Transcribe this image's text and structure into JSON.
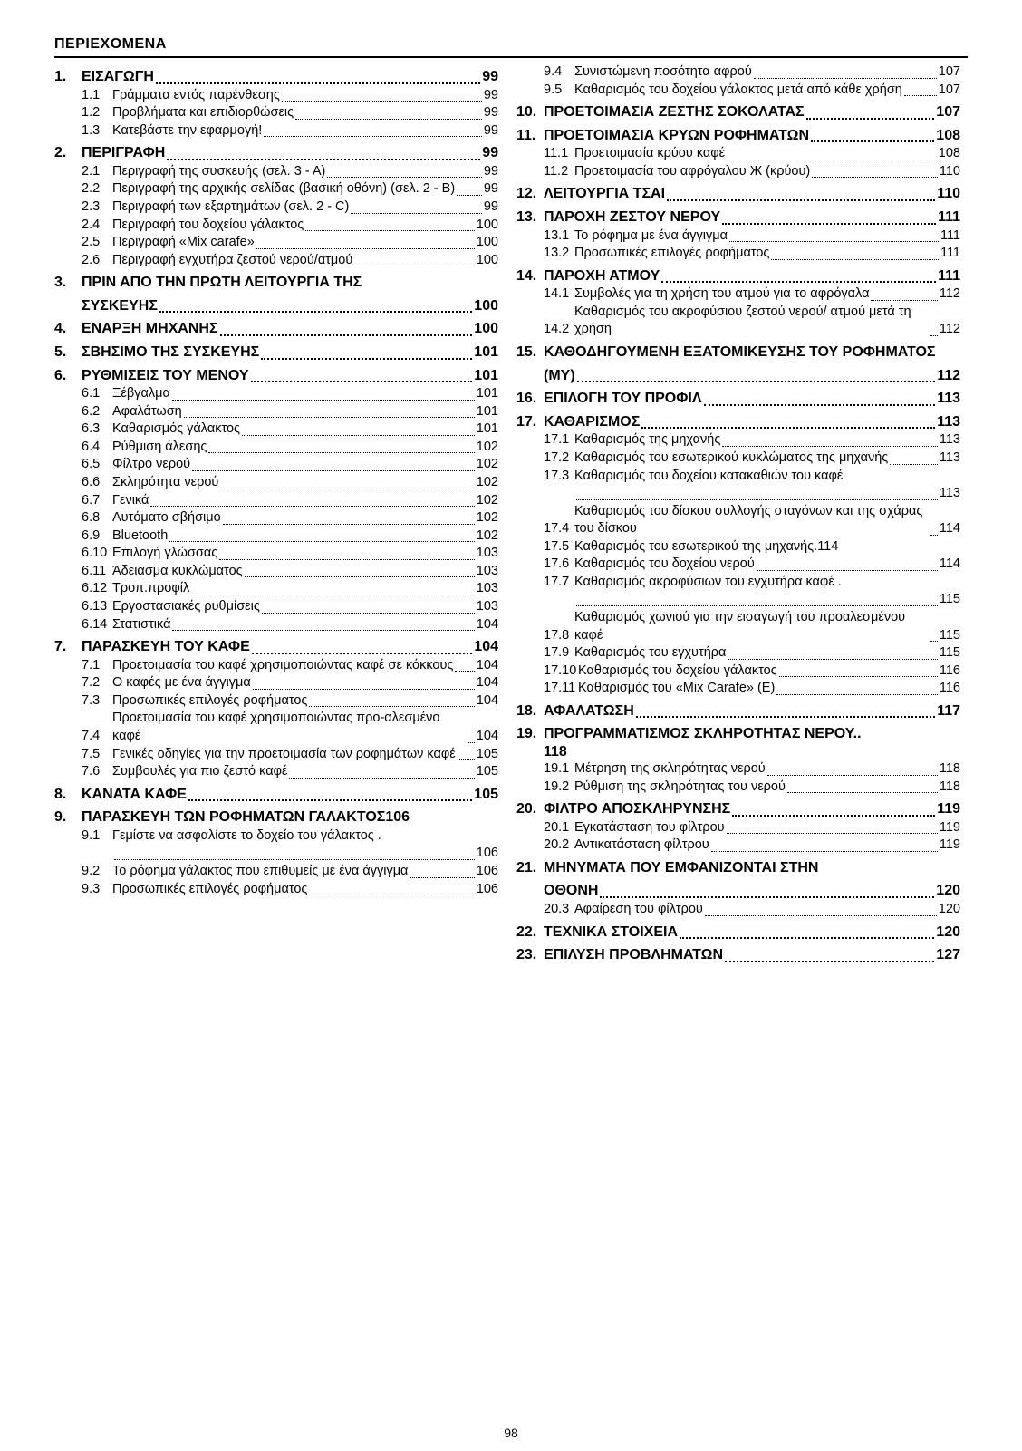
{
  "page_footer_number": "98",
  "doc_title": "ΠΕΡΙΕΧΟΜΕΝΑ",
  "style": {
    "font_family": "Arial Narrow",
    "body_color": "#000000",
    "background_color": "#ffffff",
    "section_fontsize": 16,
    "section_weight": 800,
    "sub_fontsize": 14.5,
    "sub_weight": 400,
    "title_underline_color": "#000000"
  },
  "sections": [
    {
      "num": "1.",
      "label": "ΕΙΣΑΓΩΓΗ",
      "page": "99",
      "subs": [
        {
          "num": "1.1",
          "label": "Γράμματα εντός παρένθεσης",
          "page": "99"
        },
        {
          "num": "1.2",
          "label": "Προβλήματα και επιδιορθώσεις",
          "page": "99"
        },
        {
          "num": "1.3",
          "label": "Κατεβάστε την εφαρμογή!",
          "page": "99"
        }
      ]
    },
    {
      "num": "2.",
      "label": "ΠΕΡΙΓΡΑΦΗ",
      "page": "99",
      "subs": [
        {
          "num": "2.1",
          "label": "Περιγραφή της συσκευής (σελ. 3 - Α)",
          "page": "99"
        },
        {
          "num": "2.2",
          "label": "Περιγραφή της αρχικής σελίδας (βασική οθόνη) (σελ. 2 - B)",
          "page": "99"
        },
        {
          "num": "2.3",
          "label": "Περιγραφή των εξαρτημάτων (σελ. 2 - C)",
          "page": "99"
        },
        {
          "num": "2.4",
          "label": "Περιγραφή του δοχείου γάλακτος",
          "page": "100"
        },
        {
          "num": "2.5",
          "label": "Περιγραφή «Mix carafe»",
          "page": "100"
        },
        {
          "num": "2.6",
          "label": "Περιγραφή εγχυτήρα ζεστού νερού/ατμού",
          "page": "100"
        }
      ]
    },
    {
      "num": "3.",
      "label": "ΠΡΙΝ ΑΠΟ ΤΗΝ ΠΡΩΤΗ ΛΕΙΤΟΥΡΓΙΑ ΤΗΣ ΣΥΣΚΕΥΗΣ",
      "page": "100",
      "wrap": true,
      "subs": []
    },
    {
      "num": "4.",
      "label": "ΕΝΑΡΞΗ ΜΗΧΑΝΗΣ",
      "page": "100",
      "subs": []
    },
    {
      "num": "5.",
      "label": "ΣΒΗΣΙΜΟ ΤΗΣ ΣΥΣΚΕΥΗΣ",
      "page": "101",
      "subs": []
    },
    {
      "num": "6.",
      "label": "ΡΥΘΜΙΣΕΙΣ ΤΟΥ ΜΕΝΟΥ",
      "page": "101",
      "subs": [
        {
          "num": "6.1",
          "label": "Ξέβγαλμα",
          "page": "101"
        },
        {
          "num": "6.2",
          "label": "Αφαλάτωση",
          "page": "101"
        },
        {
          "num": "6.3",
          "label": "Καθαρισμός γάλακτος",
          "page": "101"
        },
        {
          "num": "6.4",
          "label": "Ρύθμιση άλεσης",
          "page": "102"
        },
        {
          "num": "6.5",
          "label": "Φίλτρο νερού",
          "page": "102"
        },
        {
          "num": "6.6",
          "label": "Σκληρότητα νερού",
          "page": "102"
        },
        {
          "num": "6.7",
          "label": "Γενικά",
          "page": "102"
        },
        {
          "num": "6.8",
          "label": "Αυτόματο σβήσιμο",
          "page": "102"
        },
        {
          "num": "6.9",
          "label": "Bluetooth",
          "page": "102"
        },
        {
          "num": "6.10",
          "label": "Επιλογή γλώσσας",
          "page": "103"
        },
        {
          "num": "6.11",
          "label": "Άδειασμα κυκλώματος",
          "page": "103"
        },
        {
          "num": "6.12",
          "label": "Τροπ.προφίλ",
          "page": "103"
        },
        {
          "num": "6.13",
          "label": "Εργοστασιακές ρυθμίσεις",
          "page": "103"
        },
        {
          "num": "6.14",
          "label": "Στατιστικά",
          "page": "104"
        }
      ]
    },
    {
      "num": "7.",
      "label": "ΠΑΡΑΣΚΕΥΗ ΤΟΥ ΚΑΦΕ",
      "page": "104",
      "subs": [
        {
          "num": "7.1",
          "label": "Προετοιμασία του καφέ χρησιμοποιώντας καφέ σε κόκκους",
          "page": "104"
        },
        {
          "num": "7.2",
          "label": "Ο καφές με ένα άγγιγμα",
          "page": "104"
        },
        {
          "num": "7.3",
          "label": "Προσωπικές επιλογές ροφήματος",
          "page": "104"
        },
        {
          "num": "7.4",
          "label": "Προετοιμασία του καφέ χρησιμοποιώντας προ-αλεσμένο καφέ",
          "page": "104"
        },
        {
          "num": "7.5",
          "label": "Γενικές οδηγίες για την προετοιμασία των ροφημάτων καφέ",
          "page": "105"
        },
        {
          "num": "7.6",
          "label": "Συμβουλές για πιο ζεστό καφέ",
          "page": "105"
        }
      ]
    },
    {
      "num": "8.",
      "label": "ΚΑΝΑΤΑ ΚΑΦΕ",
      "page": "105",
      "subs": []
    },
    {
      "num": "9.",
      "label": "ΠΑΡΑΣΚΕΥΗ ΤΩΝ ΡΟΦΗΜΑΤΩΝ ΓΑΛΑΚΤΟΣ",
      "page": "106",
      "nodots": true,
      "subs": [
        {
          "num": "9.1",
          "label": "Γεμίστε να ασφαλίστε το δοχείο του γάλακτος .",
          "page": "106",
          "leading_dots_only": true
        },
        {
          "num": "9.2",
          "label": "Το ρόφημα γάλακτος που επιθυμείς με ένα άγγιγμα",
          "page": "106"
        },
        {
          "num": "9.3",
          "label": "Προσωπικές επιλογές ροφήματος",
          "page": "106"
        }
      ]
    }
  ],
  "sections_col2": [
    {
      "continued_subs": [
        {
          "num": "9.4",
          "label": "Συνιστώμενη ποσότητα αφρού",
          "page": "107"
        },
        {
          "num": "9.5",
          "label": "Καθαρισμός του δοχείου γάλακτος μετά από κάθε χρήση",
          "page": "107"
        }
      ]
    },
    {
      "num": "10.",
      "label": "ΠΡΟΕΤΟΙΜΑΣΙΑ ΖΕΣΤΗΣ ΣΟΚΟΛΑΤΑΣ",
      "page": "107",
      "subs": []
    },
    {
      "num": "11.",
      "label": "ΠΡΟΕΤΟΙΜΑΣΙΑ ΚΡΥΩΝ ΡΟΦΗΜΑΤΩΝ",
      "page": "108",
      "subs": [
        {
          "num": "11.1",
          "label": "Προετοιμασία κρύου καφέ",
          "page": "108"
        },
        {
          "num": "11.2",
          "label": "Προετοιμασία του αφρόγαλου Ж (κρύου)",
          "page": "110"
        }
      ]
    },
    {
      "num": "12.",
      "label": "ΛEIΤΟΥΡΓΙΑ ΤΣΑΙ",
      "page": "110",
      "subs": []
    },
    {
      "num": "13.",
      "label": "ΠΑΡΟΧΗ ΖΕΣΤΟΥ ΝΕΡΟΥ",
      "page": "111",
      "subs": [
        {
          "num": "13.1",
          "label": "Το ρόφημα με ένα άγγιγμα",
          "page": "111"
        },
        {
          "num": "13.2",
          "label": "Προσωπικές επιλογές ροφήματος",
          "page": "111"
        }
      ]
    },
    {
      "num": "14.",
      "label": "ΠΑΡΟΧΗ ΑΤΜΟΥ",
      "page": "111",
      "subs": [
        {
          "num": "14.1",
          "label": "Συμβολές για τη χρήση του ατμού για το αφρόγαλα",
          "page": "112"
        },
        {
          "num": "14.2",
          "label": "Καθαρισμός του ακροφύσιου ζεστού νερού/ ατμού μετά τη χρήση",
          "page": "112"
        }
      ]
    },
    {
      "num": "15.",
      "label": "ΚΑΘΟΔΗΓΟΥΜΕΝΗ ΕΞΑΤΟΜΙΚΕΥΣΗΣ ΤΟΥ ΡΟΦΗΜΑΤΟΣ (MY)",
      "page": "112",
      "wrap": true,
      "subs": []
    },
    {
      "num": "16.",
      "label": "ΕΠΙΛΟΓΗ ΤΟΥ ΠΡΟΦΙΛ",
      "page": "113",
      "subs": []
    },
    {
      "num": "17.",
      "label": "ΚΑΘΑΡΙΣΜΟΣ",
      "page": "113",
      "subs": [
        {
          "num": "17.1",
          "label": "Καθαρισμός της μηχανής",
          "page": "113"
        },
        {
          "num": "17.2",
          "label": "Καθαρισμός του εσωτερικού κυκλώματος της μηχανής",
          "page": "113"
        },
        {
          "num": "17.3",
          "label": "Καθαρισμός του δοχείου κατακαθιών του καφέ",
          "page": "113",
          "leading_dots_only": true
        },
        {
          "num": "17.4",
          "label": "Καθαρισμός του δίσκου συλλογής σταγόνων και της σχάρας του δίσκου",
          "page": "114"
        },
        {
          "num": "17.5",
          "label": "Καθαρισμός του εσωτερικού της μηχανής.",
          "page": "114",
          "nodots": true
        },
        {
          "num": "17.6",
          "label": "Καθαρισμός του δοχείου νερού",
          "page": "114"
        },
        {
          "num": "17.7",
          "label": "Καθαρισμός ακροφύσιων του εγχυτήρα καφέ .",
          "page": "115",
          "leading_dots_only": true
        },
        {
          "num": "17.8",
          "label": "Καθαρισμός χωνιού για την εισαγωγή του προαλεσμένου καφέ",
          "page": "115"
        },
        {
          "num": "17.9",
          "label": "Καθαρισμός του εγχυτήρα",
          "page": "115"
        },
        {
          "num": "17.10",
          "label": "Καθαρισμός του δοχείου γάλακτος",
          "page": "116",
          "tightnum": true
        },
        {
          "num": "17.11",
          "label": "Καθαρισμός του «Mix Carafe» (E)",
          "page": "116",
          "tightnum": true
        }
      ]
    },
    {
      "num": "18.",
      "label": "ΑΦΑΛΑΤΩΣΗ",
      "page": "117",
      "subs": []
    },
    {
      "num": "19.",
      "label": "ΠΡΟΓΡΑΜΜΑΤΙΣΜΟΣ ΣΚΛΗΡΟΤΗΤΑΣ ΝΕΡΟΥ",
      "page": "118",
      "page_trailing": true,
      "inlinepage": true,
      "subs": [
        {
          "num": "19.1",
          "label": "Μέτρηση της σκληρότητας νερού",
          "page": "118"
        },
        {
          "num": "19.2",
          "label": "Ρύθμιση της σκληρότητας του νερού",
          "page": "118"
        }
      ]
    },
    {
      "num": "20.",
      "label": "ΦΙΛΤΡΟ ΑΠΟΣΚΛΗΡΥΝΣΗΣ",
      "page": "119",
      "subs": [
        {
          "num": "20.1",
          "label": "Εγκατάσταση του φίλτρου",
          "page": "119"
        },
        {
          "num": "20.2",
          "label": "Αντικατάσταση φίλτρου",
          "page": "119"
        }
      ]
    },
    {
      "num": "21.",
      "label": "ΜΗΝΥΜΑΤΑ ΠΟΥ ΕΜΦΑΝΙΖΟΝΤΑΙ ΣΤΗΝ ΟΘΟΝΗ",
      "page": "120",
      "wrap": true,
      "subs": [
        {
          "num": "20.3",
          "label": "Αφαίρεση του φίλτρου",
          "page": "120"
        }
      ]
    },
    {
      "num": "22.",
      "label": "ΤΕΧΝΙΚΑ ΣΤΟΙΧΕΙΑ",
      "page": "120",
      "subs": []
    },
    {
      "num": "23.",
      "label": "ΕΠΙΛΥΣΗ ΠΡΟΒΛΗΜΑΤΩΝ",
      "page": "127",
      "subs": []
    }
  ]
}
